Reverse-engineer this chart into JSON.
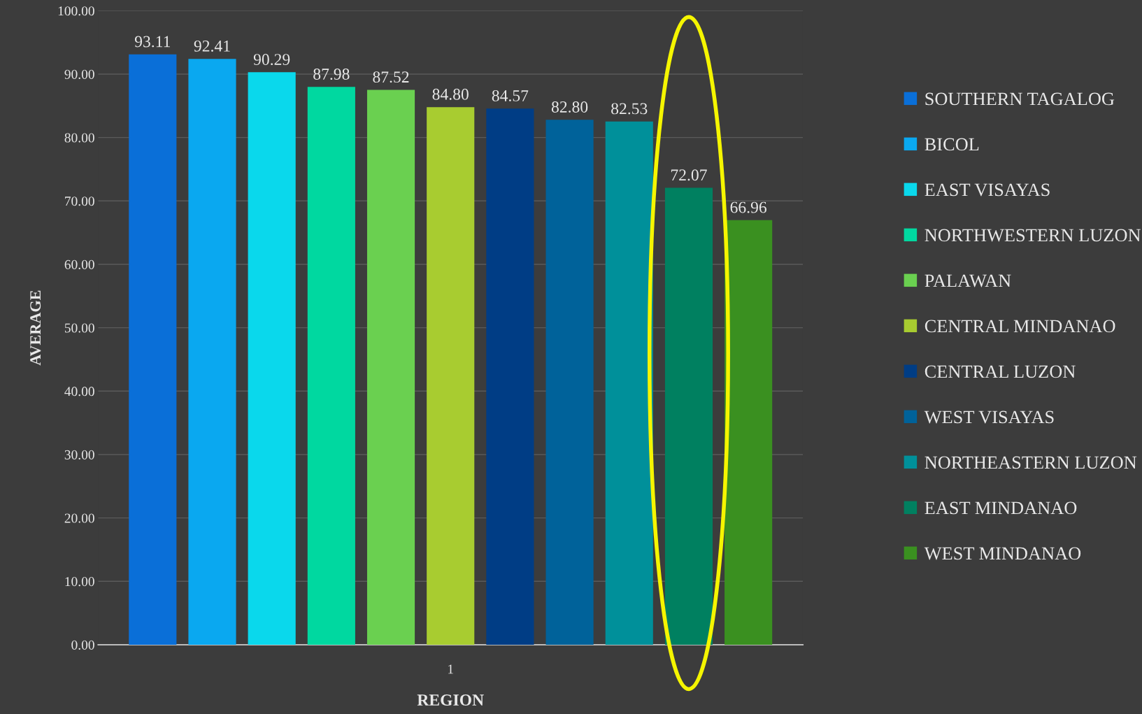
{
  "chart_data": {
    "type": "bar",
    "categories": [
      "1"
    ],
    "xlabel": "REGION",
    "ylabel": "AVERAGE",
    "ylim": [
      0,
      100
    ],
    "yticks": [
      {
        "value": 0,
        "label": "0.00"
      },
      {
        "value": 10,
        "label": "10.00"
      },
      {
        "value": 20,
        "label": "20.00"
      },
      {
        "value": 30,
        "label": "30.00"
      },
      {
        "value": 40,
        "label": "40.00"
      },
      {
        "value": 50,
        "label": "50.00"
      },
      {
        "value": 60,
        "label": "60.00"
      },
      {
        "value": 70,
        "label": "70.00"
      },
      {
        "value": 80,
        "label": "80.00"
      },
      {
        "value": 90,
        "label": "90.00"
      },
      {
        "value": 100,
        "label": "100.00"
      }
    ],
    "grid": "y",
    "legend": "right",
    "series": [
      {
        "name": "SOUTHERN TAGALOG",
        "color": "#0a6fd8",
        "values": [
          93.11
        ],
        "value_labels": [
          "93.11"
        ]
      },
      {
        "name": "BICOL",
        "color": "#0aa8f0",
        "values": [
          92.41
        ],
        "value_labels": [
          "92.41"
        ]
      },
      {
        "name": "EAST VISAYAS",
        "color": "#0ad8ec",
        "values": [
          90.29
        ],
        "value_labels": [
          "90.29"
        ]
      },
      {
        "name": "NORTHWESTERN LUZON",
        "color": "#00d8a0",
        "values": [
          87.98
        ],
        "value_labels": [
          "87.98"
        ]
      },
      {
        "name": "PALAWAN",
        "color": "#6ad050",
        "values": [
          87.52
        ],
        "value_labels": [
          "87.52"
        ]
      },
      {
        "name": "CENTRAL MINDANAO",
        "color": "#a8cc30",
        "values": [
          84.8
        ],
        "value_labels": [
          "84.80"
        ]
      },
      {
        "name": "CENTRAL LUZON",
        "color": "#003d85",
        "values": [
          84.57
        ],
        "value_labels": [
          "84.57"
        ]
      },
      {
        "name": "WEST VISAYAS",
        "color": "#00629a",
        "values": [
          82.8
        ],
        "value_labels": [
          "82.80"
        ]
      },
      {
        "name": "NORTHEASTERN LUZON",
        "color": "#00909a",
        "values": [
          82.53
        ],
        "value_labels": [
          "82.53"
        ]
      },
      {
        "name": "EAST MINDANAO",
        "color": "#008060",
        "values": [
          72.07
        ],
        "value_labels": [
          "72.07"
        ]
      },
      {
        "name": "WEST MINDANAO",
        "color": "#3a9020",
        "values": [
          66.96
        ],
        "value_labels": [
          "66.96"
        ]
      }
    ]
  }
}
